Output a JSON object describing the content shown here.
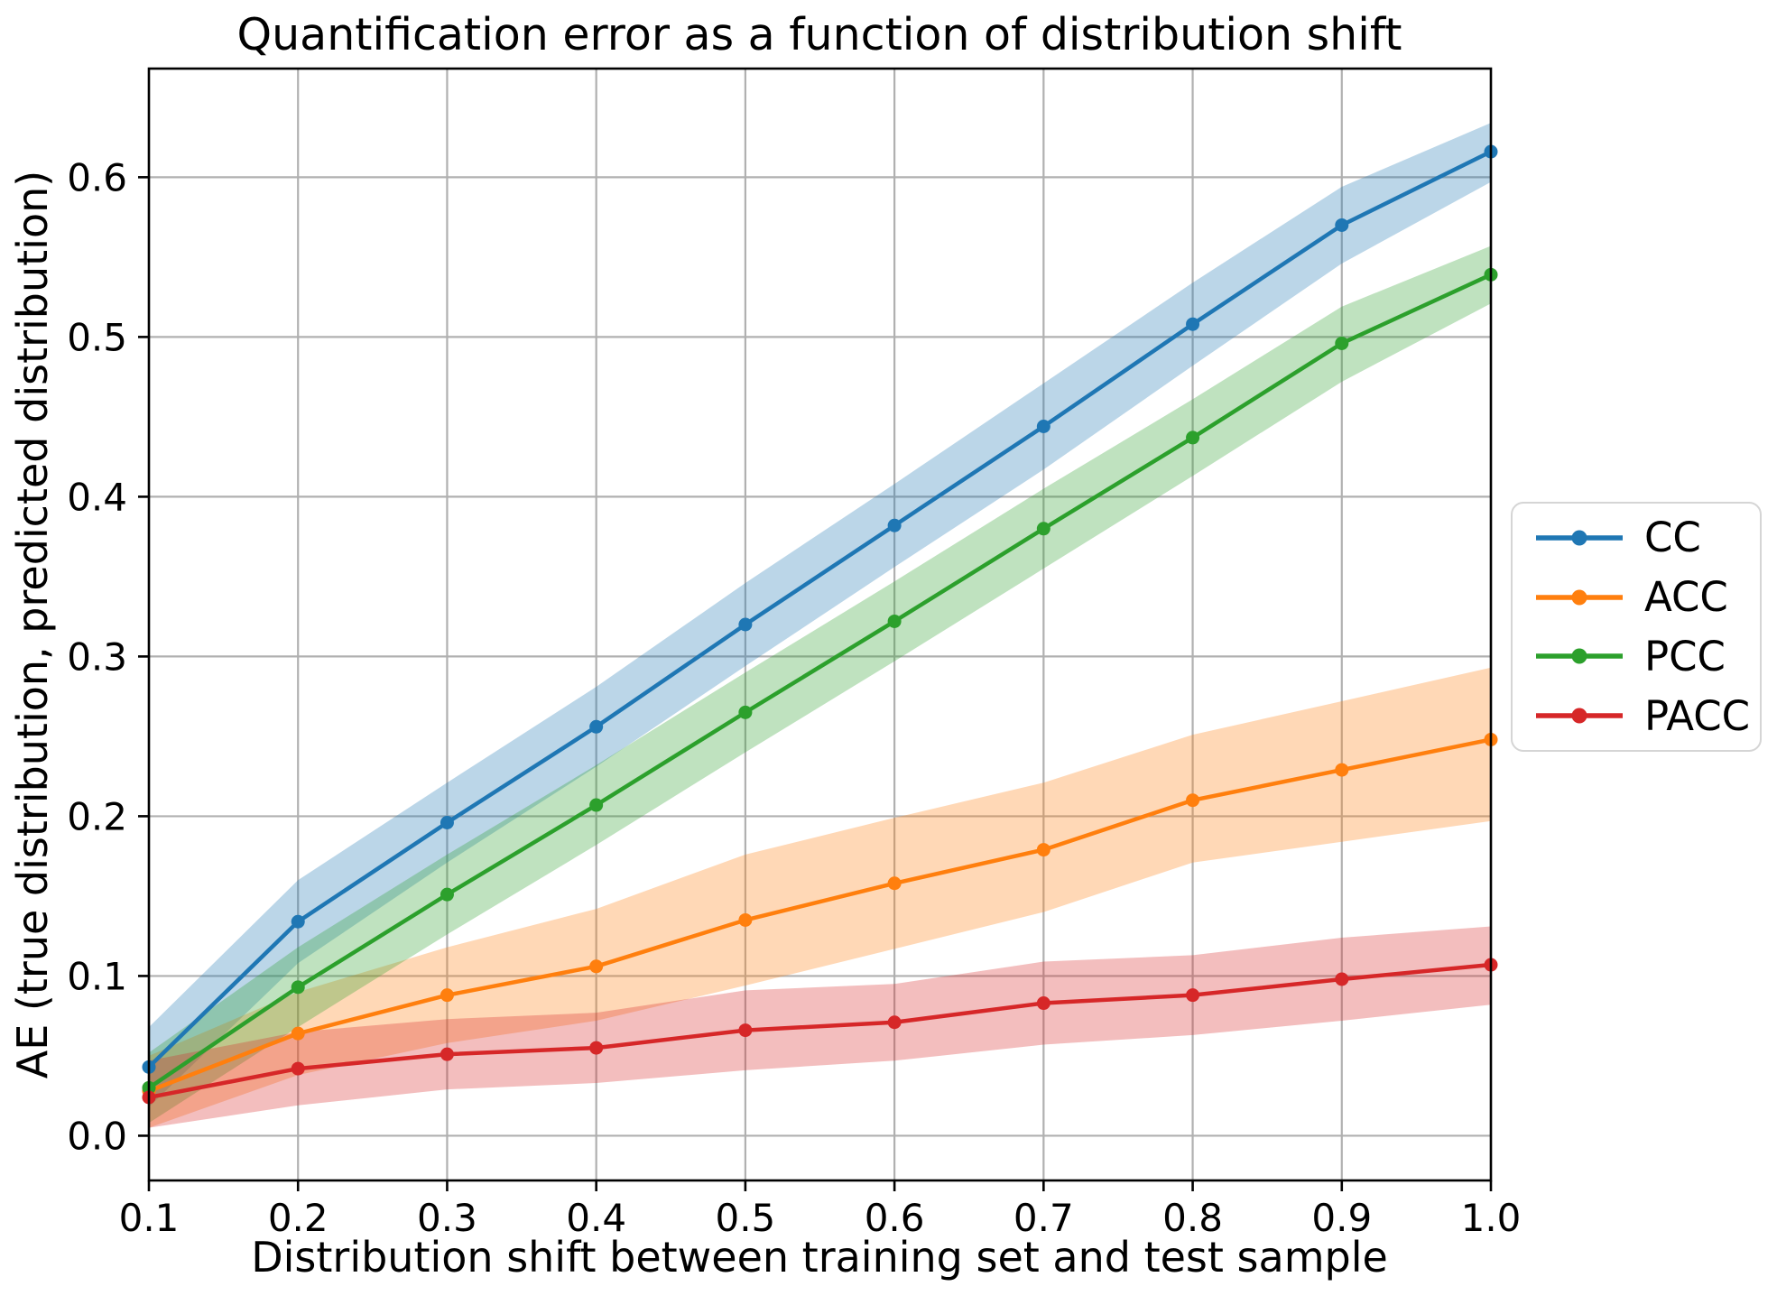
{
  "chart_data": {
    "type": "line",
    "title": "Quantification error as a function of distribution shift",
    "xlabel": "Distribution shift between training set and test sample",
    "ylabel": "AE (true distribution, predicted distribution)",
    "x": [
      0.1,
      0.2,
      0.3,
      0.4,
      0.5,
      0.6,
      0.7,
      0.8,
      0.9,
      1.0
    ],
    "x_tick_labels": [
      "0.1",
      "0.2",
      "0.3",
      "0.4",
      "0.5",
      "0.6",
      "0.7",
      "0.8",
      "0.9",
      "1.0"
    ],
    "y_ticks": [
      0.0,
      0.1,
      0.2,
      0.3,
      0.4,
      0.5,
      0.6
    ],
    "y_tick_labels": [
      "0.0",
      "0.1",
      "0.2",
      "0.3",
      "0.4",
      "0.5",
      "0.6"
    ],
    "xlim": [
      0.1,
      1.0
    ],
    "ylim": [
      -0.028,
      0.668
    ],
    "grid": true,
    "legend_position": "outside-right",
    "band_opacity": 0.3,
    "grid_color": "#b0b0b0",
    "spine_color": "#000000",
    "background_color": "#ffffff",
    "series": [
      {
        "name": "CC",
        "color": "#1f77b4",
        "values": [
          0.043,
          0.134,
          0.196,
          0.256,
          0.32,
          0.382,
          0.444,
          0.508,
          0.57,
          0.616
        ],
        "band_lower": [
          0.018,
          0.108,
          0.171,
          0.231,
          0.294,
          0.356,
          0.417,
          0.482,
          0.546,
          0.597
        ],
        "band_upper": [
          0.068,
          0.16,
          0.221,
          0.281,
          0.346,
          0.408,
          0.471,
          0.534,
          0.594,
          0.634
        ]
      },
      {
        "name": "ACC",
        "color": "#ff7f0e",
        "values": [
          0.028,
          0.064,
          0.088,
          0.106,
          0.135,
          0.158,
          0.179,
          0.21,
          0.229,
          0.248
        ],
        "band_lower": [
          0.005,
          0.038,
          0.058,
          0.072,
          0.094,
          0.117,
          0.14,
          0.171,
          0.184,
          0.197
        ],
        "band_upper": [
          0.05,
          0.09,
          0.118,
          0.142,
          0.176,
          0.199,
          0.221,
          0.251,
          0.272,
          0.293
        ]
      },
      {
        "name": "PCC",
        "color": "#2ca02c",
        "values": [
          0.03,
          0.093,
          0.151,
          0.207,
          0.265,
          0.322,
          0.38,
          0.437,
          0.496,
          0.539
        ],
        "band_lower": [
          0.008,
          0.068,
          0.126,
          0.182,
          0.24,
          0.297,
          0.355,
          0.413,
          0.472,
          0.521
        ],
        "band_upper": [
          0.052,
          0.118,
          0.176,
          0.232,
          0.29,
          0.347,
          0.405,
          0.461,
          0.519,
          0.557
        ]
      },
      {
        "name": "PACC",
        "color": "#d62728",
        "values": [
          0.024,
          0.042,
          0.051,
          0.055,
          0.066,
          0.071,
          0.083,
          0.088,
          0.098,
          0.107
        ],
        "band_lower": [
          0.005,
          0.019,
          0.029,
          0.033,
          0.041,
          0.047,
          0.057,
          0.063,
          0.072,
          0.082
        ],
        "band_upper": [
          0.047,
          0.065,
          0.073,
          0.077,
          0.091,
          0.095,
          0.109,
          0.113,
          0.124,
          0.131
        ]
      }
    ]
  }
}
